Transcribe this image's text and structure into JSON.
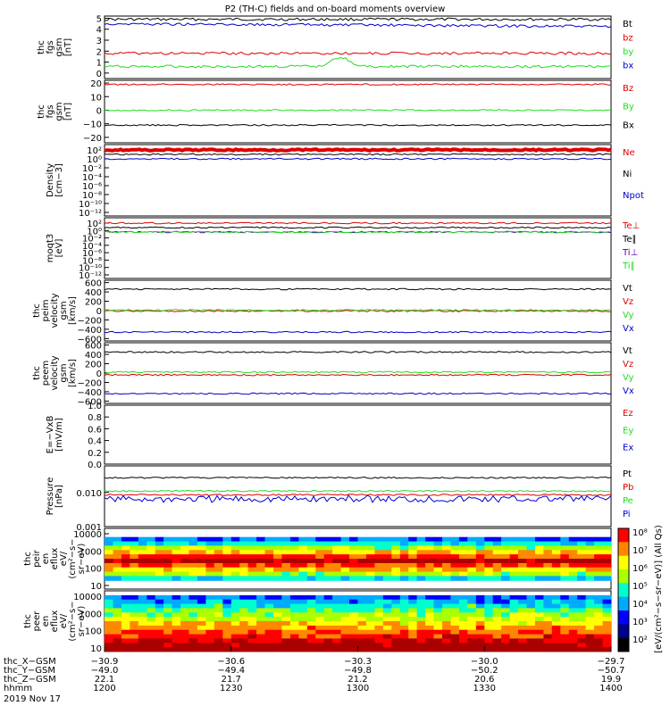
{
  "title": "P2 (TH-C) fields and on-board moments overview",
  "colors": {
    "black": "#000000",
    "red": "#dd0000",
    "green": "#22dd22",
    "blue": "#0000cc",
    "purple": "#5500aa"
  },
  "chart_data": [
    {
      "type": "line",
      "id": "fgs",
      "ylabel": [
        "thc",
        "fgs",
        "gsm",
        "[nT]"
      ],
      "ylim": [
        -0.5,
        5.2
      ],
      "ticks": [
        "5",
        "4",
        "3",
        "2",
        "1",
        "0"
      ],
      "tick_values": [
        5,
        4,
        3,
        2,
        1,
        0
      ],
      "series": [
        {
          "name": "Bt",
          "color": "black",
          "level": 4.9
        },
        {
          "name": "bz",
          "color": "red",
          "level": 1.8
        },
        {
          "name": "by",
          "color": "green",
          "level": 0.6
        },
        {
          "name": "bx",
          "color": "blue",
          "level": 4.5
        }
      ]
    },
    {
      "type": "line",
      "id": "fgs2",
      "ylabel": [
        "thc",
        "fgs",
        "gsm",
        "[nT]"
      ],
      "ylim": [
        -24,
        22
      ],
      "ticks": [
        "20",
        "10",
        "0",
        "−10",
        "−20"
      ],
      "tick_values": [
        20,
        10,
        0,
        -10,
        -20
      ],
      "series": [
        {
          "name": "Bz",
          "color": "red",
          "level": 19
        },
        {
          "name": "By",
          "color": "green",
          "level": 0
        },
        {
          "name": "Bx",
          "color": "black",
          "level": -11
        }
      ]
    },
    {
      "type": "line",
      "id": "density",
      "ylabel": [
        "Density",
        "[cm−3]"
      ],
      "ticks": [
        "10²",
        "10⁰",
        "10⁻²",
        "10⁻⁴",
        "10⁻⁶",
        "10⁻⁸",
        "10⁻¹⁰",
        "10⁻¹²"
      ],
      "series": [
        {
          "name": "Ne",
          "color": "red"
        },
        {
          "name": "Ni",
          "color": "black"
        },
        {
          "name": "Npot",
          "color": "blue"
        }
      ]
    },
    {
      "type": "line",
      "id": "temp",
      "ylabel": [
        "moqt3",
        "[eV]"
      ],
      "ticks": [
        "10²",
        "10⁰",
        "10⁻²",
        "10⁻⁴",
        "10⁻⁶",
        "10⁻⁸",
        "10⁻¹⁰",
        "10⁻¹²"
      ],
      "series": [
        {
          "name": "Te⊥",
          "color": "red"
        },
        {
          "name": "Te∥",
          "color": "black"
        },
        {
          "name": "Ti⊥",
          "color": "purple"
        },
        {
          "name": "Ti∥",
          "color": "green"
        }
      ]
    },
    {
      "type": "line",
      "id": "peim",
      "ylabel": [
        "thc",
        "peim",
        "velocity",
        "gsm",
        "[km/s]"
      ],
      "ylim": [
        -650,
        650
      ],
      "ticks": [
        "600",
        "400",
        "200",
        "0",
        "−200",
        "−400",
        "−600"
      ],
      "tick_values": [
        600,
        400,
        200,
        0,
        -200,
        -400,
        -600
      ],
      "series": [
        {
          "name": "Vt",
          "color": "black",
          "level": 460
        },
        {
          "name": "Vz",
          "color": "red",
          "level": -10
        },
        {
          "name": "Vy",
          "color": "green",
          "level": 10
        },
        {
          "name": "Vx",
          "color": "blue",
          "level": -460
        }
      ]
    },
    {
      "type": "line",
      "id": "peem",
      "ylabel": [
        "thc",
        "peem",
        "velocity",
        "gsm",
        "[km/s]"
      ],
      "ylim": [
        -650,
        650
      ],
      "ticks": [
        "600",
        "400",
        "200",
        "0",
        "−200",
        "−400",
        "−600"
      ],
      "tick_values": [
        600,
        400,
        200,
        0,
        -200,
        -400,
        -600
      ],
      "series": [
        {
          "name": "Vt",
          "color": "black",
          "level": 450
        },
        {
          "name": "Vz",
          "color": "red",
          "level": -40
        },
        {
          "name": "Vy",
          "color": "green",
          "level": 20
        },
        {
          "name": "Vx",
          "color": "blue",
          "level": -440
        }
      ]
    },
    {
      "type": "line",
      "id": "efield",
      "ylabel": [
        "E=−VxB",
        "[mV/m]"
      ],
      "ylim": [
        0,
        1
      ],
      "ticks": [
        "1.0",
        "0.8",
        "0.6",
        "0.4",
        "0.2",
        "0.0"
      ],
      "tick_values": [
        1,
        0.8,
        0.6,
        0.4,
        0.2,
        0
      ],
      "series": [
        {
          "name": "Ez",
          "color": "red"
        },
        {
          "name": "Ey",
          "color": "green"
        },
        {
          "name": "Ex",
          "color": "blue"
        }
      ]
    },
    {
      "type": "line",
      "id": "pressure",
      "ylabel": [
        "Pressure",
        "[nPa]"
      ],
      "log": true,
      "ylim": [
        0.001,
        0.06
      ],
      "ticks": [
        "0.010",
        "0.001"
      ],
      "tick_values": [
        0.01,
        0.001
      ],
      "series": [
        {
          "name": "Pt",
          "color": "black",
          "level": 0.027
        },
        {
          "name": "Pb",
          "color": "red",
          "level": 0.0085
        },
        {
          "name": "Pe",
          "color": "green",
          "level": 0.011
        },
        {
          "name": "Pi",
          "color": "blue",
          "level": 0.0065
        }
      ]
    },
    {
      "type": "heatmap",
      "id": "peir",
      "ylabel": [
        "thc",
        "peir",
        "en",
        "eflux",
        "eV/",
        "(cm²−s−",
        "sr−eV)"
      ],
      "ticks": [
        "10000",
        "1000",
        "100",
        "10"
      ]
    },
    {
      "type": "heatmap",
      "id": "peer",
      "ylabel": [
        "thc",
        "peer",
        "en",
        "eflux",
        "eV/",
        "(cm²−s−",
        "sr−eV)"
      ],
      "ticks": [
        "10000",
        "1000",
        "100",
        "10"
      ]
    }
  ],
  "colorbar": {
    "ticks": [
      "10⁸",
      "10⁷",
      "10⁶",
      "10⁵",
      "10⁴",
      "10³",
      "10²"
    ],
    "label": "[eV/(cm²−s−sr−eV)] (All Qs)"
  },
  "axis_rows": [
    {
      "label": "thc_X−GSM",
      "values": [
        "−30.9",
        "−30.6",
        "−30.3",
        "−30.0",
        "−29.7"
      ]
    },
    {
      "label": "thc_Y−GSM",
      "values": [
        "−49.0",
        "−49.4",
        "−49.8",
        "−50.2",
        "−50.7"
      ]
    },
    {
      "label": "thc_Z−GSM",
      "values": [
        "22.1",
        "21.7",
        "21.2",
        "20.6",
        "19.9"
      ]
    },
    {
      "label": "hhmm",
      "values": [
        "1200",
        "1230",
        "1300",
        "1330",
        "1400"
      ]
    }
  ],
  "date": "2019 Nov 17"
}
